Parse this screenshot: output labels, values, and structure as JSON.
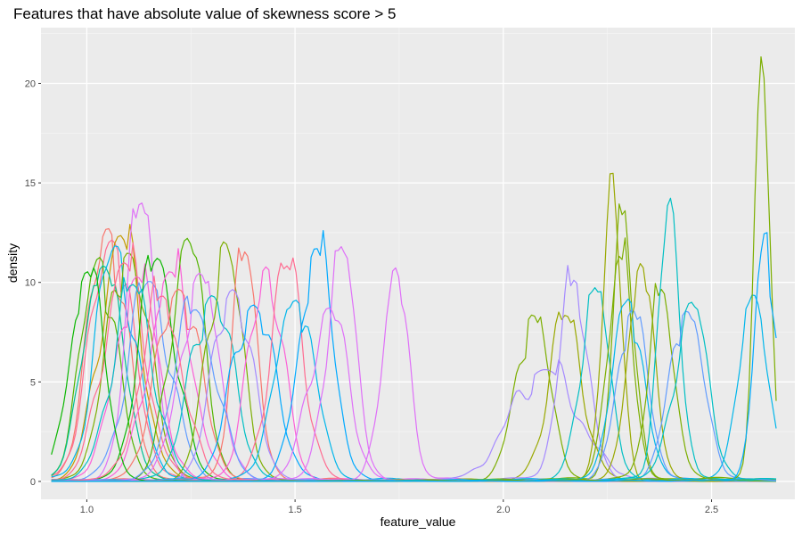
{
  "chart_data": {
    "type": "line",
    "title": "Features that have absolute value of skewness score > 5",
    "xlabel": "feature_value",
    "ylabel": "density",
    "xlim": [
      0.89,
      2.7
    ],
    "ylim": [
      -0.9,
      22.8
    ],
    "x_ticks": [
      1.0,
      1.5,
      2.0,
      2.5
    ],
    "x_tick_labels": [
      "1.0",
      "1.5",
      "2.0",
      "2.5"
    ],
    "y_ticks": [
      0,
      5,
      10,
      15,
      20
    ],
    "y_tick_labels": [
      "0",
      "5",
      "10",
      "15",
      "20"
    ],
    "grid": true,
    "legend": "none",
    "palette": [
      "#F8766D",
      "#C49A00",
      "#7CAE00",
      "#53B400",
      "#00C094",
      "#00B6EB",
      "#619CFF",
      "#A58AFF",
      "#DF70F8",
      "#FB61D7",
      "#FF6C91",
      "#00A9FF",
      "#0CB702",
      "#00BFC4",
      "#E58700",
      "#99A800"
    ],
    "series": [
      {
        "peak_x": 1.05,
        "peak_y": 12.6,
        "sd": 0.045,
        "color": "#F8766D"
      },
      {
        "peak_x": 1.06,
        "peak_y": 11.9,
        "sd": 0.05,
        "color": "#FF6C91"
      },
      {
        "peak_x": 1.08,
        "peak_y": 12.3,
        "sd": 0.048,
        "color": "#C49A00"
      },
      {
        "peak_x": 1.03,
        "peak_y": 11.2,
        "sd": 0.042,
        "color": "#53B400"
      },
      {
        "peak_x": 1.04,
        "peak_y": 10.8,
        "sd": 0.046,
        "color": "#00C094"
      },
      {
        "peak_x": 1.07,
        "peak_y": 11.6,
        "sd": 0.047,
        "color": "#00B6EB"
      },
      {
        "peak_x": 1.1,
        "peak_y": 11.4,
        "sd": 0.05,
        "color": "#7CAE00"
      },
      {
        "peak_x": 1.13,
        "peak_y": 13.9,
        "sd": 0.035,
        "color": "#DF70F8"
      },
      {
        "peak_x": 1.12,
        "peak_y": 10.2,
        "sd": 0.05,
        "color": "#FB61D7"
      },
      {
        "peak_x": 1.09,
        "peak_y": 10.9,
        "sd": 0.05,
        "color": "#FF6C91"
      },
      {
        "peak_x": 1.15,
        "peak_y": 10.0,
        "sd": 0.05,
        "color": "#619CFF"
      },
      {
        "peak_x": 1.17,
        "peak_y": 11.1,
        "sd": 0.045,
        "color": "#0CB702"
      },
      {
        "peak_x": 1.2,
        "peak_y": 10.5,
        "sd": 0.05,
        "color": "#FB61D7"
      },
      {
        "peak_x": 1.24,
        "peak_y": 12.2,
        "sd": 0.04,
        "color": "#53B400"
      },
      {
        "peak_x": 1.22,
        "peak_y": 9.6,
        "sd": 0.05,
        "color": "#F8766D"
      },
      {
        "peak_x": 1.27,
        "peak_y": 10.4,
        "sd": 0.045,
        "color": "#DF70F8"
      },
      {
        "peak_x": 1.3,
        "peak_y": 9.2,
        "sd": 0.05,
        "color": "#00BFC4"
      },
      {
        "peak_x": 1.33,
        "peak_y": 12.0,
        "sd": 0.04,
        "color": "#7CAE00"
      },
      {
        "peak_x": 1.38,
        "peak_y": 11.4,
        "sd": 0.03,
        "color": "#F8766D"
      },
      {
        "peak_x": 1.35,
        "peak_y": 9.6,
        "sd": 0.045,
        "color": "#A58AFF"
      },
      {
        "peak_x": 1.4,
        "peak_y": 8.8,
        "sd": 0.05,
        "color": "#00A9FF"
      },
      {
        "peak_x": 1.43,
        "peak_y": 10.6,
        "sd": 0.04,
        "color": "#FB61D7"
      },
      {
        "peak_x": 1.48,
        "peak_y": 10.8,
        "sd": 0.04,
        "color": "#FF6C91"
      },
      {
        "peak_x": 1.5,
        "peak_y": 9.0,
        "sd": 0.045,
        "color": "#00B6EB"
      },
      {
        "peak_x": 1.55,
        "peak_y": 11.7,
        "sd": 0.04,
        "color": "#00A9FF"
      },
      {
        "peak_x": 1.58,
        "peak_y": 8.6,
        "sd": 0.045,
        "color": "#DF70F8"
      },
      {
        "peak_x": 1.61,
        "peak_y": 11.6,
        "sd": 0.035,
        "color": "#DF70F8"
      },
      {
        "peak_x": 1.74,
        "peak_y": 10.6,
        "sd": 0.03,
        "color": "#DF70F8"
      },
      {
        "peak_x": 1.0,
        "peak_y": 10.5,
        "sd": 0.04,
        "color": "#0CB702"
      },
      {
        "peak_x": 1.11,
        "peak_y": 9.8,
        "sd": 0.05,
        "color": "#00BFC4"
      },
      {
        "peak_x": 1.26,
        "peak_y": 8.6,
        "sd": 0.05,
        "color": "#619CFF"
      },
      {
        "peak_x": 1.18,
        "peak_y": 9.2,
        "sd": 0.05,
        "color": "#FF6C91"
      },
      {
        "peak_x": 2.07,
        "peak_y": 8.3,
        "sd": 0.04,
        "color": "#7CAE00"
      },
      {
        "peak_x": 2.1,
        "peak_y": 5.6,
        "sd": 0.08,
        "color": "#A58AFF"
      },
      {
        "peak_x": 2.15,
        "peak_y": 8.3,
        "sd": 0.04,
        "color": "#99A800"
      },
      {
        "peak_x": 2.17,
        "peak_y": 9.9,
        "sd": 0.035,
        "color": "#A58AFF"
      },
      {
        "peak_x": 2.22,
        "peak_y": 9.6,
        "sd": 0.035,
        "color": "#00BFC4"
      },
      {
        "peak_x": 2.26,
        "peak_y": 15.6,
        "sd": 0.022,
        "color": "#99A800"
      },
      {
        "peak_x": 2.28,
        "peak_y": 11.2,
        "sd": 0.03,
        "color": "#7CAE00"
      },
      {
        "peak_x": 2.29,
        "peak_y": 13.5,
        "sd": 0.025,
        "color": "#7CAE00"
      },
      {
        "peak_x": 2.3,
        "peak_y": 9.1,
        "sd": 0.035,
        "color": "#00B6EB"
      },
      {
        "peak_x": 2.31,
        "peak_y": 8.5,
        "sd": 0.035,
        "color": "#619CFF"
      },
      {
        "peak_x": 2.33,
        "peak_y": 10.9,
        "sd": 0.03,
        "color": "#99A800"
      },
      {
        "peak_x": 2.38,
        "peak_y": 9.6,
        "sd": 0.03,
        "color": "#7CAE00"
      },
      {
        "peak_x": 2.4,
        "peak_y": 14.2,
        "sd": 0.025,
        "color": "#00BFC4"
      },
      {
        "peak_x": 2.44,
        "peak_y": 8.4,
        "sd": 0.04,
        "color": "#619CFF"
      },
      {
        "peak_x": 2.45,
        "peak_y": 8.8,
        "sd": 0.04,
        "color": "#00BFC4"
      },
      {
        "peak_x": 2.6,
        "peak_y": 9.2,
        "sd": 0.035,
        "color": "#00B6EB"
      },
      {
        "peak_x": 2.62,
        "peak_y": 21.3,
        "sd": 0.018,
        "color": "#7CAE00"
      },
      {
        "peak_x": 2.63,
        "peak_y": 12.5,
        "sd": 0.025,
        "color": "#00A9FF"
      }
    ]
  }
}
